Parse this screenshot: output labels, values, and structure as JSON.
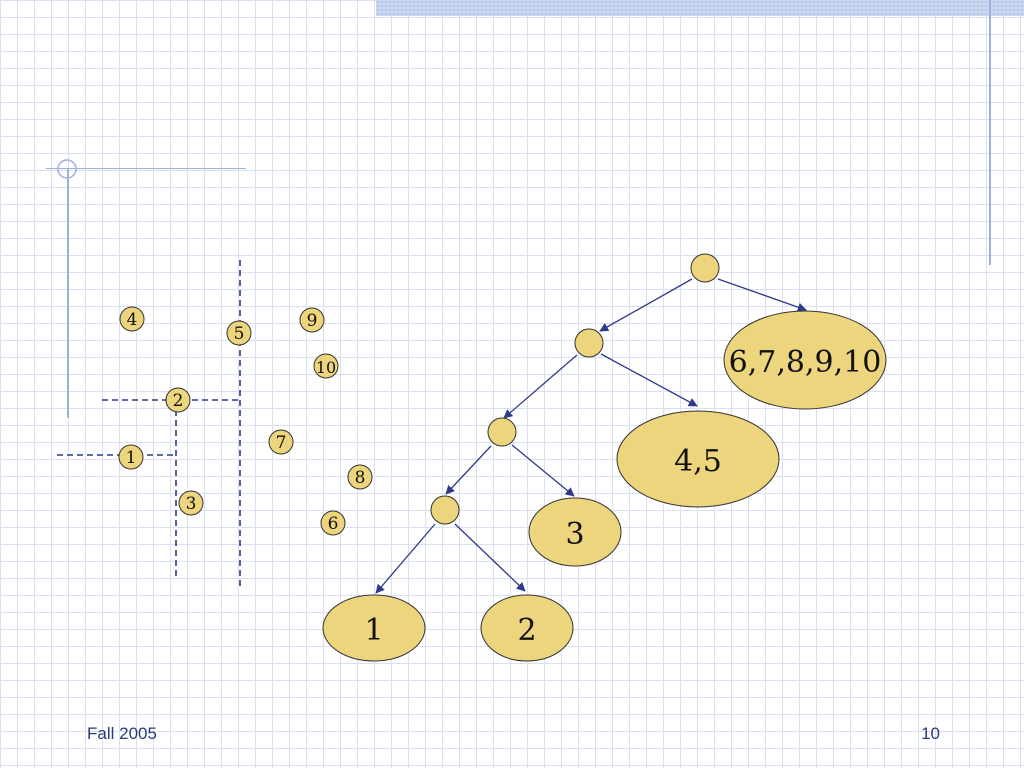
{
  "footer": {
    "left": "Fall 2005",
    "right": "10"
  },
  "colors": {
    "node_fill": "#ecd57c",
    "node_stroke": "#333333",
    "line": "#2f3a8a",
    "accent": "#9fb0e0"
  },
  "points": [
    {
      "label": "1"
    },
    {
      "label": "2"
    },
    {
      "label": "3"
    },
    {
      "label": "4"
    },
    {
      "label": "5"
    },
    {
      "label": "6"
    },
    {
      "label": "7"
    },
    {
      "label": "8"
    },
    {
      "label": "9"
    },
    {
      "label": "10"
    }
  ],
  "tree": {
    "leaves": [
      {
        "label": "6,7,8,9,10"
      },
      {
        "label": "4,5"
      },
      {
        "label": "3"
      },
      {
        "label": "1"
      },
      {
        "label": "2"
      }
    ]
  }
}
